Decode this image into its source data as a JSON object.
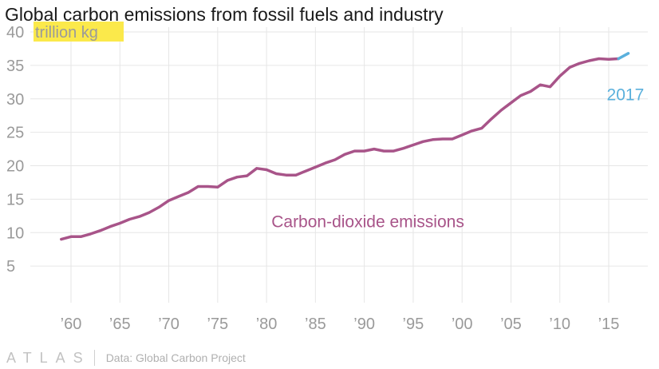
{
  "title": "Global carbon emissions from fossil fuels and industry",
  "footer": {
    "brand": "ATLAS",
    "source": "Data: Global Carbon Project"
  },
  "colors": {
    "main_series": "#a85489",
    "highlight": "#5ab0dc",
    "unit_highlight": "#fbe94b",
    "grid": "#e6e6e6",
    "tick_text": "#9a9a9a"
  },
  "chart_data": {
    "type": "line",
    "title": "Global carbon emissions from fossil fuels and industry",
    "ylabel": "trillion kg",
    "xlabel": "",
    "ylim": [
      0,
      40
    ],
    "xlim": [
      1956,
      2019
    ],
    "yticks": [
      5,
      10,
      15,
      20,
      25,
      30,
      35,
      40
    ],
    "xticks": [
      {
        "value": 1960,
        "label": "’60"
      },
      {
        "value": 1965,
        "label": "’65"
      },
      {
        "value": 1970,
        "label": "’70"
      },
      {
        "value": 1975,
        "label": "’75"
      },
      {
        "value": 1980,
        "label": "’80"
      },
      {
        "value": 1985,
        "label": "’85"
      },
      {
        "value": 1990,
        "label": "’90"
      },
      {
        "value": 1995,
        "label": "’95"
      },
      {
        "value": 2000,
        "label": "’00"
      },
      {
        "value": 2005,
        "label": "’05"
      },
      {
        "value": 2010,
        "label": "’10"
      },
      {
        "value": 2015,
        "label": "’15"
      }
    ],
    "grid": true,
    "series": [
      {
        "name": "Carbon-dioxide emissions",
        "color": "#a85489",
        "x": [
          1959,
          1960,
          1961,
          1962,
          1963,
          1964,
          1965,
          1966,
          1967,
          1968,
          1969,
          1970,
          1971,
          1972,
          1973,
          1974,
          1975,
          1976,
          1977,
          1978,
          1979,
          1980,
          1981,
          1982,
          1983,
          1984,
          1985,
          1986,
          1987,
          1988,
          1989,
          1990,
          1991,
          1992,
          1993,
          1994,
          1995,
          1996,
          1997,
          1998,
          1999,
          2000,
          2001,
          2002,
          2003,
          2004,
          2005,
          2006,
          2007,
          2008,
          2009,
          2010,
          2011,
          2012,
          2013,
          2014,
          2015,
          2016
        ],
        "y": [
          9.0,
          9.4,
          9.4,
          9.8,
          10.3,
          10.9,
          11.4,
          12.0,
          12.4,
          13.0,
          13.8,
          14.8,
          15.4,
          16.0,
          16.9,
          16.9,
          16.8,
          17.8,
          18.3,
          18.5,
          19.6,
          19.4,
          18.8,
          18.6,
          18.6,
          19.2,
          19.8,
          20.4,
          20.9,
          21.7,
          22.2,
          22.2,
          22.5,
          22.2,
          22.2,
          22.6,
          23.1,
          23.6,
          23.9,
          24.0,
          24.0,
          24.6,
          25.2,
          25.6,
          27.0,
          28.3,
          29.4,
          30.5,
          31.1,
          32.1,
          31.8,
          33.4,
          34.7,
          35.3,
          35.7,
          36.0,
          35.9,
          36.0
        ]
      },
      {
        "name": "2017",
        "color": "#5ab0dc",
        "x": [
          2016,
          2017
        ],
        "y": [
          36.0,
          36.8
        ]
      }
    ],
    "annotations": [
      {
        "text": "Carbon-dioxide emissions",
        "x": 1980.5,
        "y": 10.8,
        "color": "#a85489"
      },
      {
        "text": "2017",
        "x": 2014.8,
        "y": 29.8,
        "color": "#5ab0dc"
      }
    ]
  }
}
